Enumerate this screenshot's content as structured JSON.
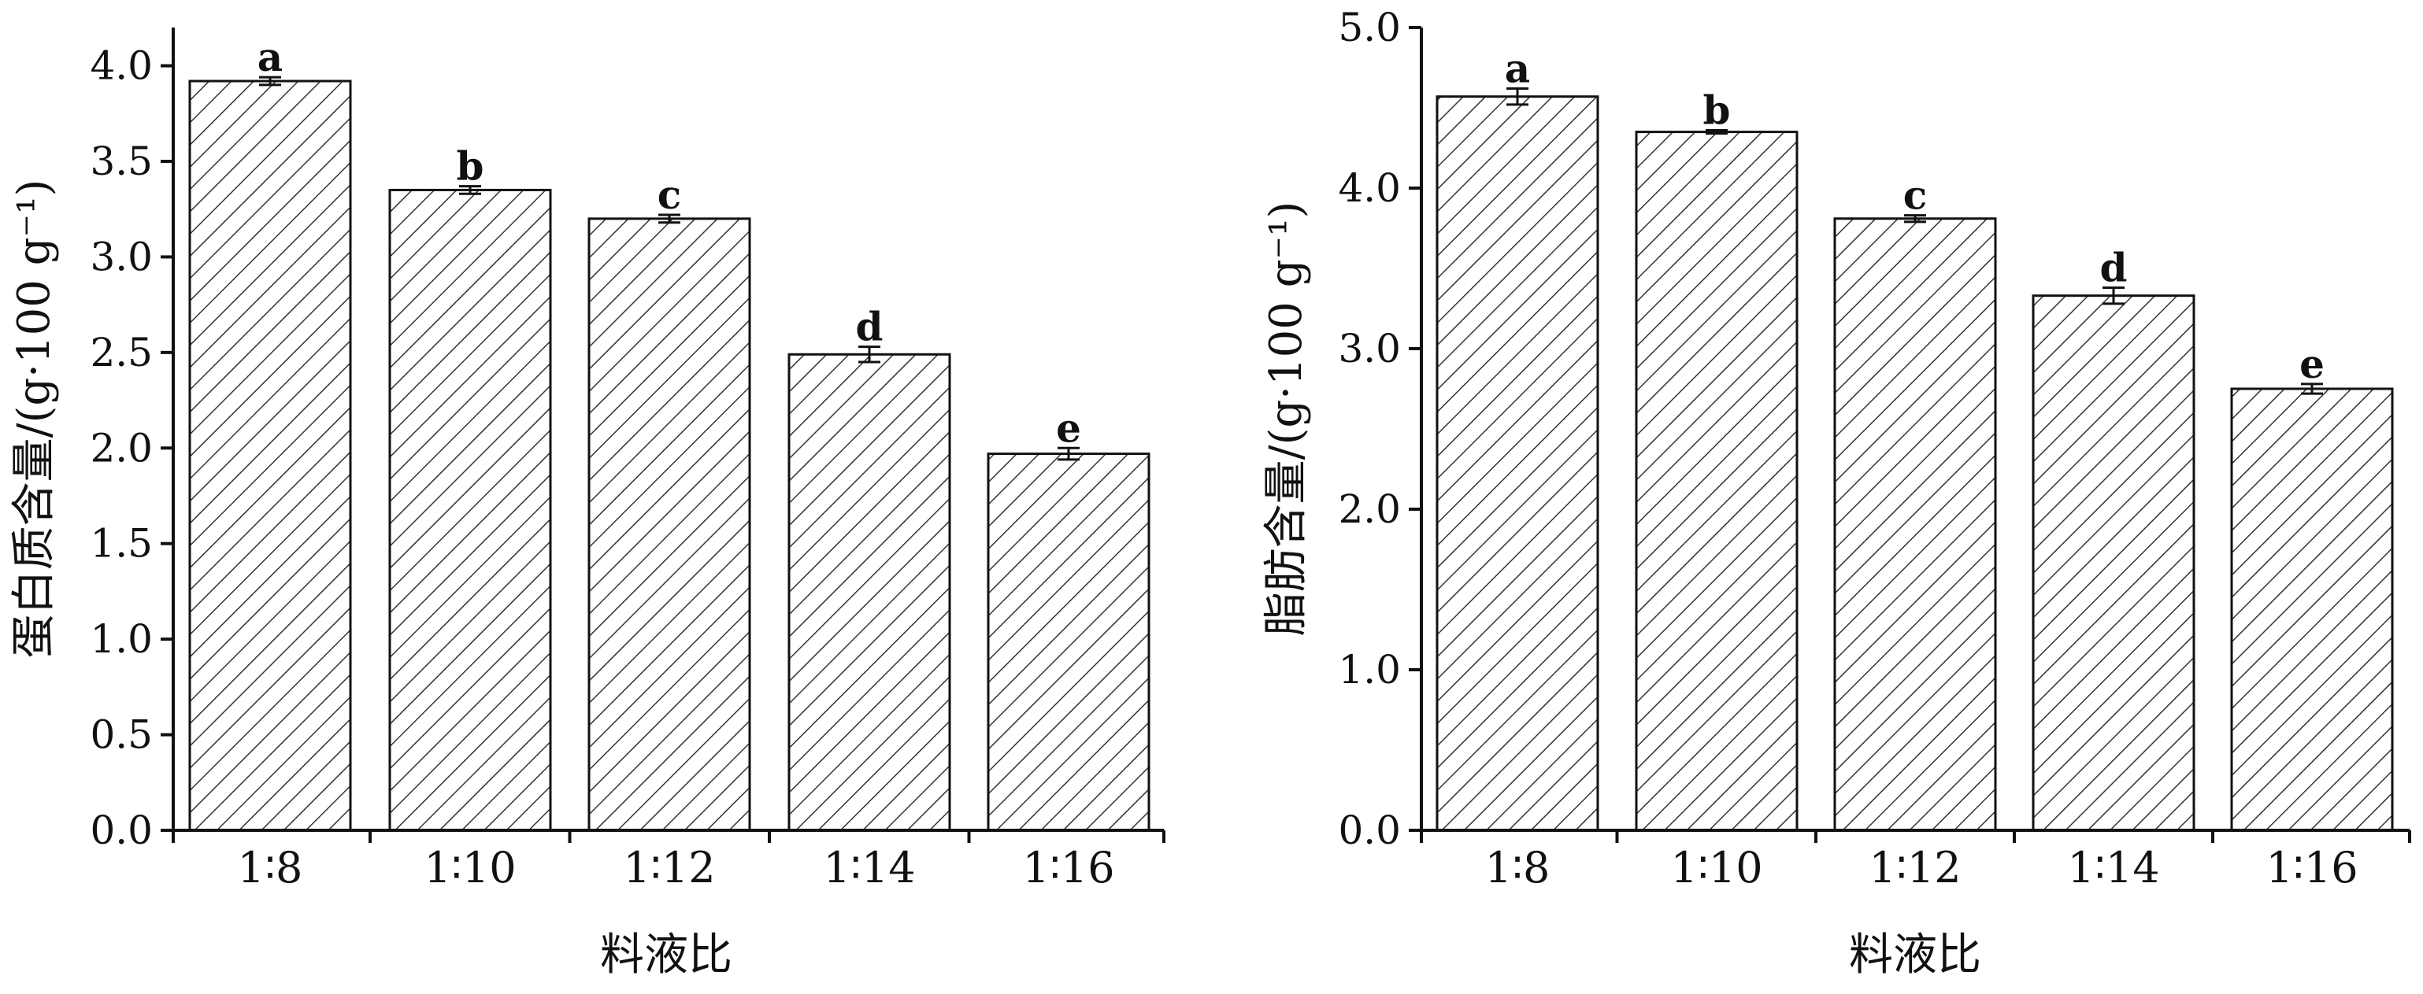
{
  "chart_data": [
    {
      "type": "bar",
      "categories": [
        "1∶8",
        "1∶10",
        "1∶12",
        "1∶14",
        "1∶16"
      ],
      "values": [
        3.92,
        3.35,
        3.2,
        2.49,
        1.97
      ],
      "errors": [
        0.02,
        0.02,
        0.02,
        0.04,
        0.03
      ],
      "significance": [
        "a",
        "b",
        "c",
        "d",
        "e"
      ],
      "xlabel": "料液比",
      "ylabel": "蛋白质含量/(g·100 g⁻¹)",
      "ylim": [
        0,
        4.2
      ],
      "yticks": [
        "0.0",
        "0.5",
        "1.0",
        "1.5",
        "2.0",
        "2.5",
        "3.0",
        "3.5",
        "4.0"
      ],
      "grid": false,
      "legend": "none"
    },
    {
      "type": "bar",
      "categories": [
        "1∶8",
        "1∶10",
        "1∶12",
        "1∶14",
        "1∶16"
      ],
      "values": [
        4.57,
        4.35,
        3.81,
        3.33,
        2.75
      ],
      "errors": [
        0.05,
        0.01,
        0.02,
        0.05,
        0.03
      ],
      "significance": [
        "a",
        "b",
        "c",
        "d",
        "e"
      ],
      "xlabel": "料液比",
      "ylabel": "脂肪含量/(g·100 g⁻¹)",
      "ylim": [
        0,
        5
      ],
      "yticks": [
        "0.0",
        "1.0",
        "2.0",
        "3.0",
        "4.0",
        "5.0"
      ],
      "grid": false,
      "legend": "none"
    }
  ]
}
